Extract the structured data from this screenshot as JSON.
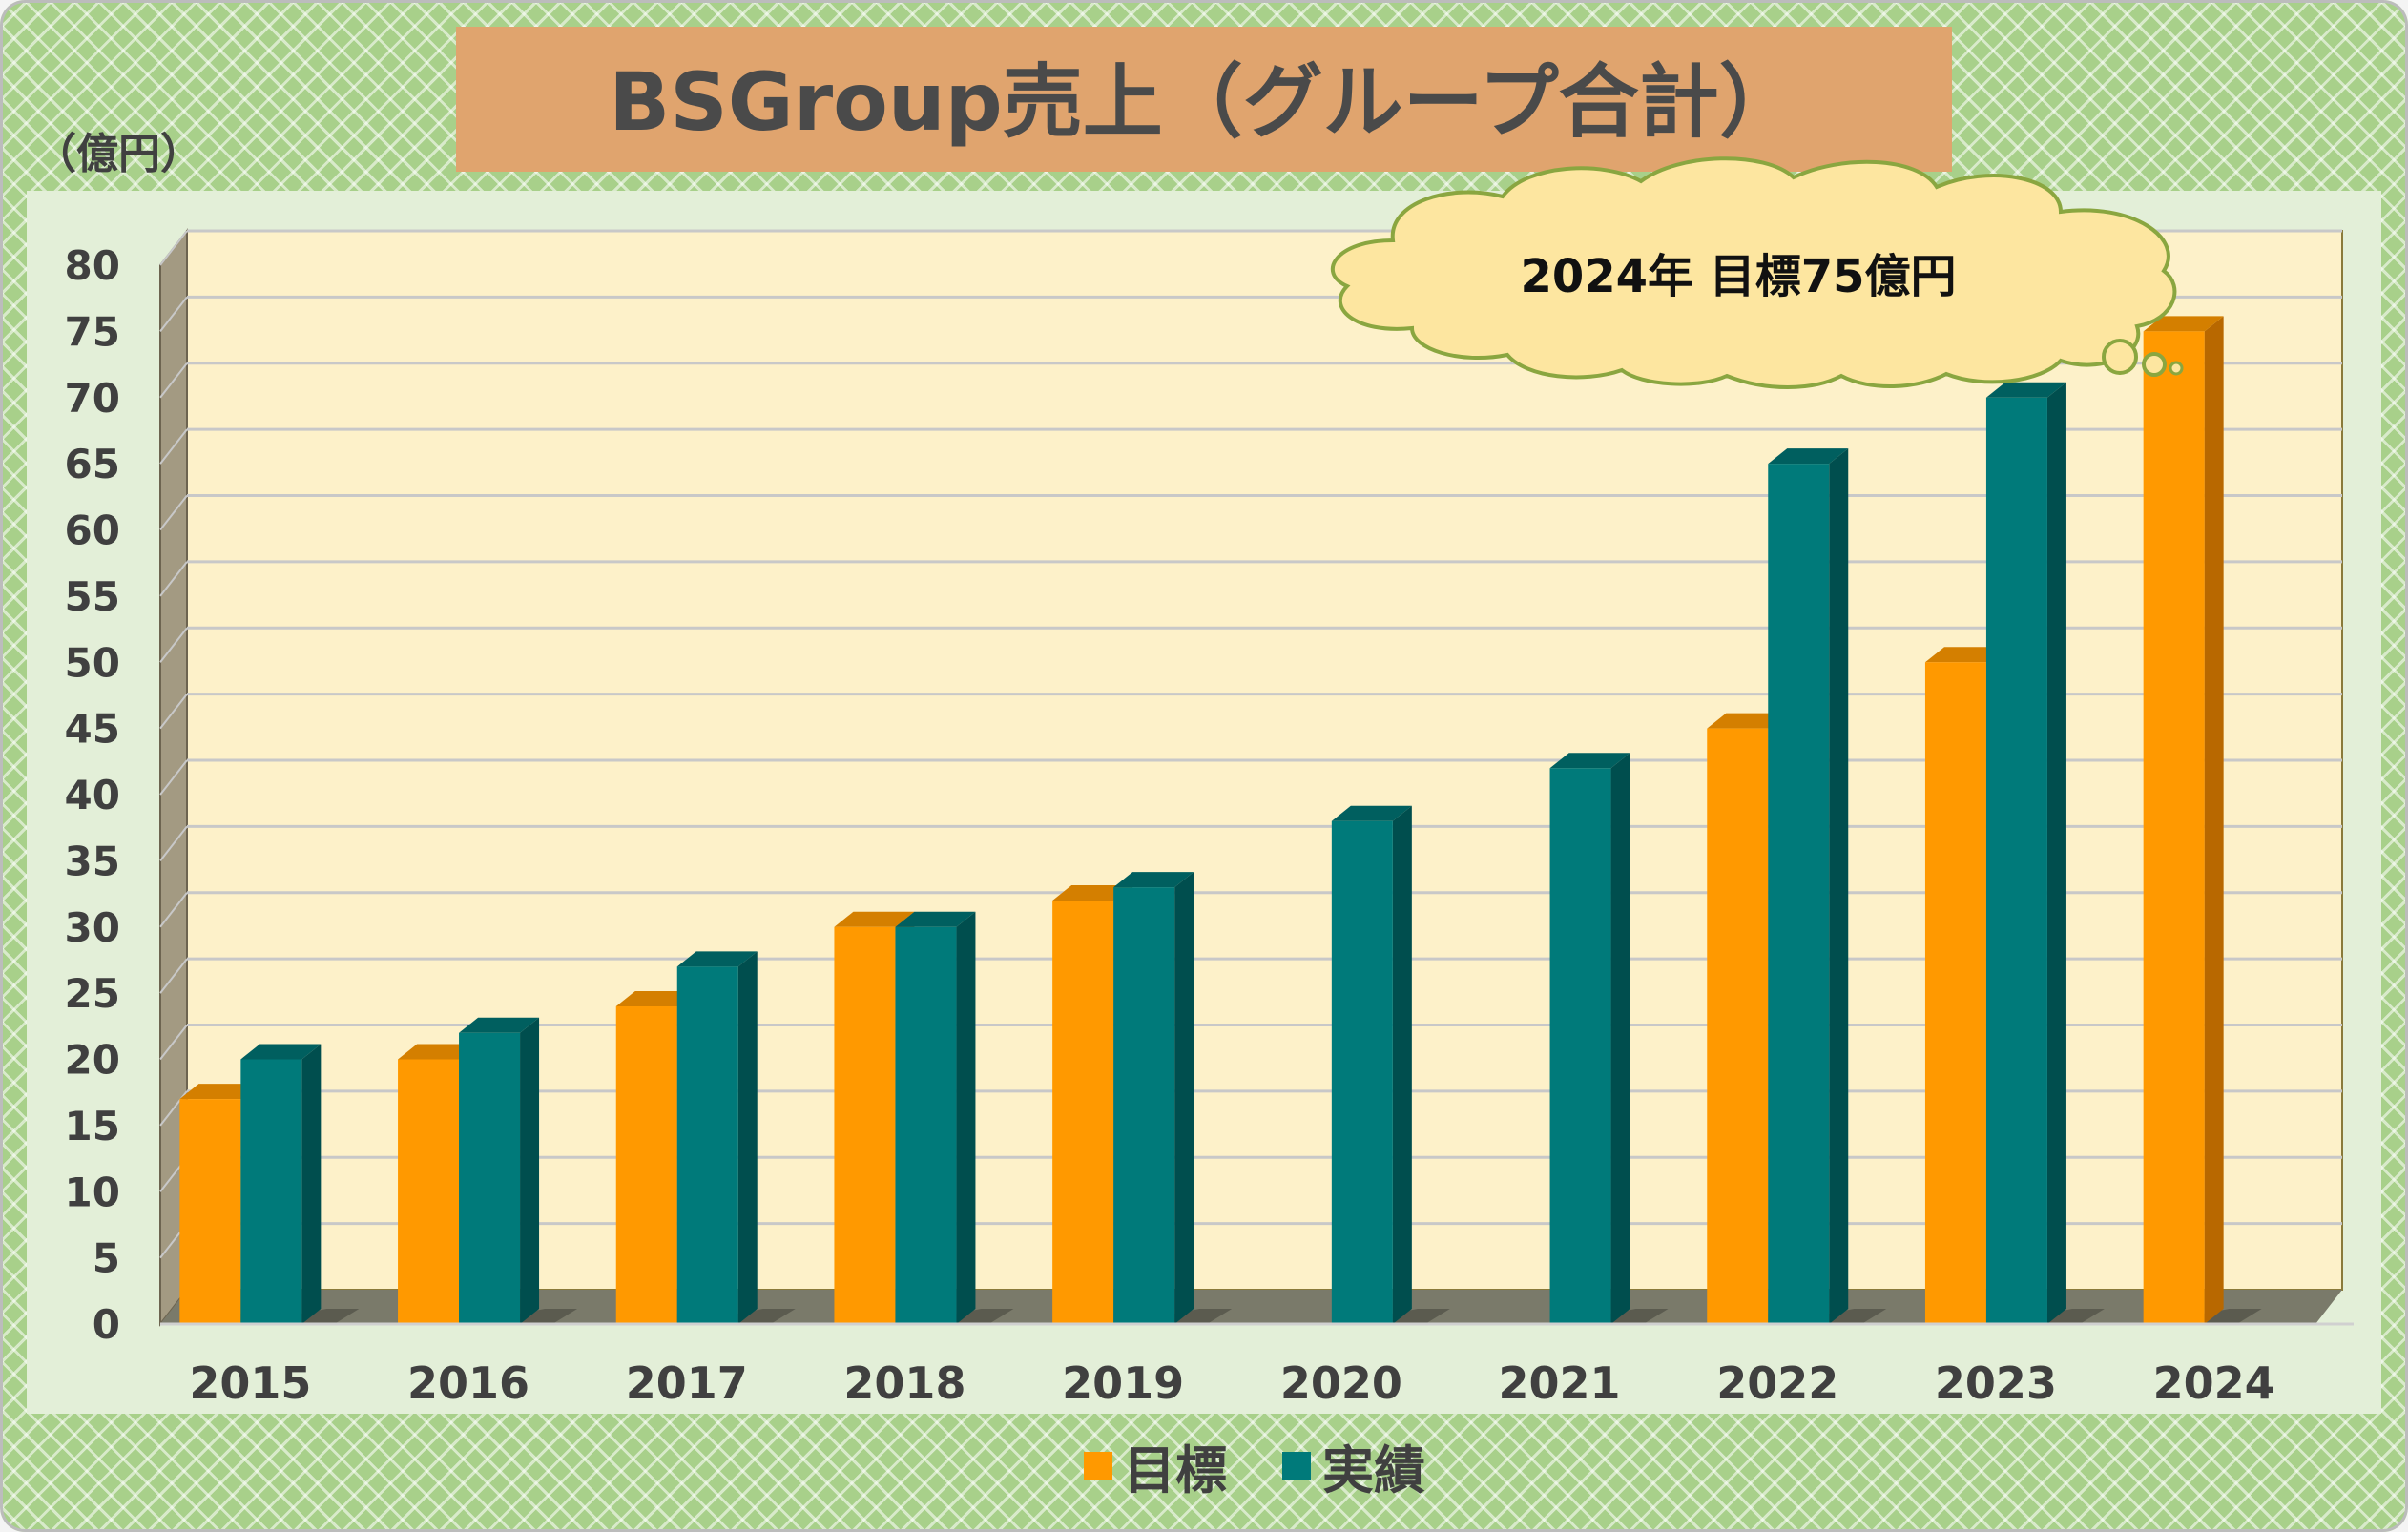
{
  "colors": {
    "target": "#ff9900",
    "target_side": "#b86800",
    "target_top": "#d47f00",
    "actual": "#007a7a",
    "actual_side": "#004e4e",
    "actual_top": "#005f5f",
    "plot_bg": "#fdf1c9",
    "wall": "#a39a82",
    "title_bg": "#e0a46e",
    "cloud_fill": "#fde6a0",
    "cloud_stroke": "#8aa640"
  },
  "title": "BSGroup売上（グループ合計）",
  "unit_label": "（億円）",
  "annotation": "2024年 目標75億円",
  "chart_data": {
    "type": "bar",
    "title": "BSGroup売上（グループ合計）",
    "ylabel": "（億円）",
    "xlabel": "",
    "ylim": [
      0,
      80
    ],
    "ytick_step": 5,
    "yticks": [
      "0",
      "5",
      "10",
      "15",
      "20",
      "25",
      "30",
      "35",
      "40",
      "45",
      "50",
      "55",
      "60",
      "65",
      "70",
      "75",
      "80"
    ],
    "categories": [
      "2015",
      "2016",
      "2017",
      "2018",
      "2019",
      "2020",
      "2021",
      "2022",
      "2023",
      "2024"
    ],
    "series": [
      {
        "name": "目標",
        "values": [
          17,
          20,
          24,
          30,
          32,
          null,
          null,
          45,
          50,
          75
        ]
      },
      {
        "name": "実績",
        "values": [
          20,
          22,
          27,
          30,
          33,
          38,
          42,
          65,
          70,
          null
        ]
      }
    ],
    "grid": true,
    "legend": "bottom"
  }
}
